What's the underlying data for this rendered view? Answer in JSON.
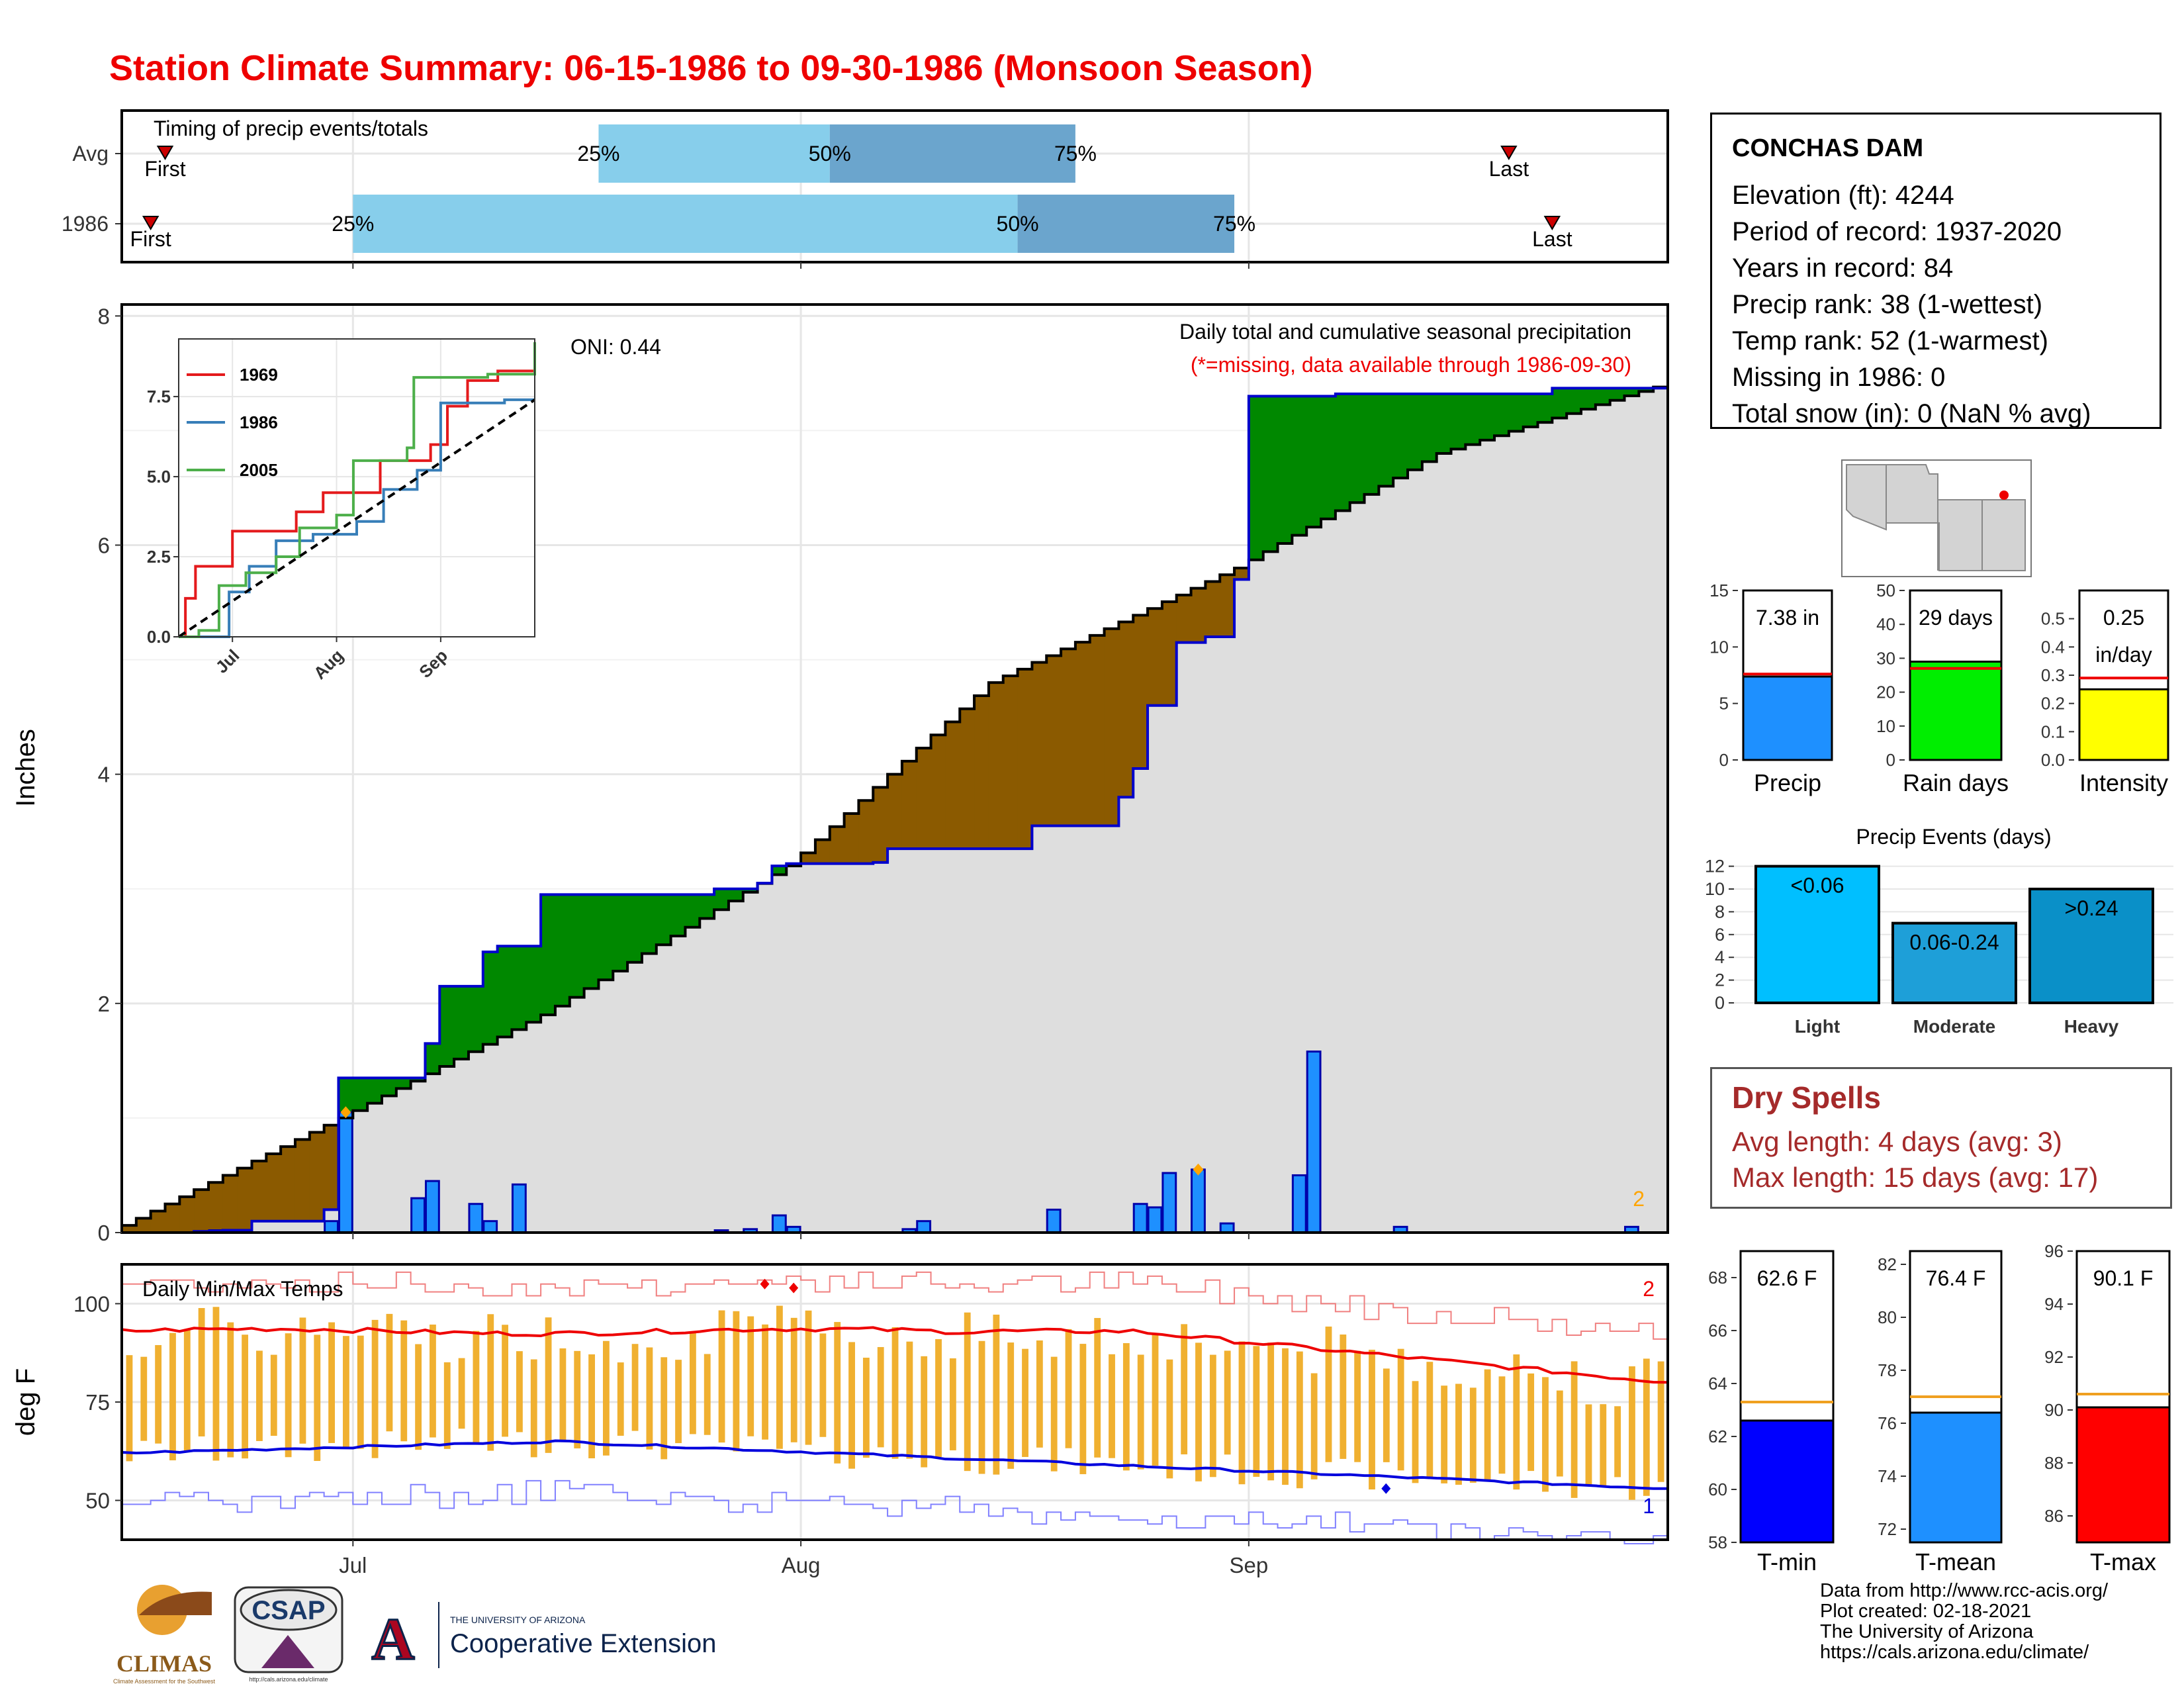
{
  "title": "Station Climate Summary: 06-15-1986 to 09-30-1986 (Monsoon Season)",
  "colors": {
    "title": "#ee0000",
    "avg_precip_line": "#000000",
    "year_precip_line": "#0000cc",
    "surplus_fill": "#008800",
    "deficit_fill": "#8b5a00",
    "background_fill": "#dedede",
    "daily_bars": "#1e90ff",
    "tmax": "#ee0000",
    "tmin": "#0000dd",
    "temp_range_bars": "#f0b030"
  },
  "timing_panel": {
    "title": "Timing of precip events/totals",
    "rows": [
      "Avg",
      "1986"
    ],
    "quartile_labels": [
      "25%",
      "50%",
      "75%"
    ],
    "first_label": "First",
    "last_label": "Last",
    "avg": {
      "first": "1986-06-18",
      "q25": "1986-07-18",
      "q50": "1986-08-03",
      "q75": "1986-08-20",
      "last": "1986-09-19"
    },
    "year": {
      "first": "1986-06-17",
      "q25": "1986-07-01",
      "q50": "1986-08-16",
      "q75": "1986-08-31",
      "last": "1986-09-22"
    }
  },
  "precip_panel": {
    "ylabel": "Inches",
    "yticks": [
      0,
      2,
      4,
      6,
      8
    ],
    "ylim": [
      0,
      8.1
    ],
    "xticks": [
      "Jul",
      "Aug",
      "Sep"
    ],
    "header_line1": "Daily total and cumulative seasonal precipitation",
    "header_line2": "(*=missing, data available through 1986-09-30)",
    "oni": "ONI: 0.44",
    "corner_count": "2"
  },
  "inset": {
    "yticks": [
      "0.0",
      "2.5",
      "5.0",
      "7.5"
    ],
    "xticks": [
      "Jul",
      "Aug",
      "Sep"
    ],
    "legend": [
      {
        "label": "1969",
        "color": "#e41a1c"
      },
      {
        "label": "1986",
        "color": "#377eb8"
      },
      {
        "label": "2005",
        "color": "#4daf4a"
      }
    ]
  },
  "temp_panel": {
    "title": "Daily Min/Max Temps",
    "ylabel": "deg F",
    "yticks": [
      50,
      75,
      100
    ],
    "ylim": [
      40,
      110
    ],
    "xticks": [
      "Jul",
      "Aug",
      "Sep"
    ],
    "count_max": "2",
    "count_min": "1"
  },
  "station_info": {
    "name": "CONCHAS DAM",
    "lines": [
      "Elevation (ft): 4244",
      "Period of record: 1937-2020",
      "Years in record: 84",
      "Precip rank: 38 (1-wettest)",
      "Temp rank: 52 (1-warmest)",
      "Missing in 1986: 0",
      "Total snow (in): 0 (NaN % avg)"
    ]
  },
  "summary_bars": [
    {
      "label": "Precip",
      "value_text": "7.38 in",
      "value": 7.38,
      "avg": 7.6,
      "ylim": [
        0,
        15
      ],
      "yticks": [
        0,
        5,
        10,
        15
      ],
      "color": "#1e90ff"
    },
    {
      "label": "Rain days",
      "value_text": "29 days",
      "value": 29,
      "avg": 27,
      "ylim": [
        0,
        50
      ],
      "yticks": [
        0,
        10,
        20,
        30,
        40,
        50
      ],
      "color": "#00ee00"
    },
    {
      "label": "Intensity",
      "value_text": "0.25",
      "value_text2": "in/day",
      "value": 0.25,
      "avg": 0.29,
      "ylim": [
        0,
        0.6
      ],
      "yticks": [
        "0.0",
        "0.1",
        "0.2",
        "0.3",
        "0.4",
        "0.5"
      ],
      "color": "#ffff00"
    }
  ],
  "precip_events": {
    "title": "Precip Events (days)",
    "yticks": [
      0,
      2,
      4,
      6,
      8,
      10,
      12
    ],
    "categories": [
      "Light",
      "Moderate",
      "Heavy"
    ],
    "bar_labels": [
      "<0.06",
      "0.06-0.24",
      ">0.24"
    ],
    "values": [
      12,
      7,
      10
    ],
    "colors": [
      "#00bfff",
      "#1e9fd8",
      "#0a90c8"
    ]
  },
  "dry_spells": {
    "title": "Dry Spells",
    "avg_line": "Avg length: 4 days (avg: 3)",
    "max_line": "Max length: 15 days (avg: 17)"
  },
  "temp_bars": [
    {
      "label": "T-min",
      "value_text": "62.6 F",
      "value": 62.6,
      "avg": 63.3,
      "ylim": [
        58,
        69
      ],
      "yticks": [
        58,
        60,
        62,
        64,
        66,
        68
      ],
      "color": "#0000ff"
    },
    {
      "label": "T-mean",
      "value_text": "76.4 F",
      "value": 76.4,
      "avg": 77.0,
      "ylim": [
        71.5,
        82.5
      ],
      "yticks": [
        72,
        74,
        76,
        78,
        80,
        82
      ],
      "color": "#1e90ff"
    },
    {
      "label": "T-max",
      "value_text": "90.1 F",
      "value": 90.1,
      "avg": 90.6,
      "ylim": [
        85,
        96
      ],
      "yticks": [
        86,
        88,
        90,
        92,
        94,
        96
      ],
      "color": "#ff0000"
    }
  ],
  "chart_data": [
    {
      "type": "line",
      "title": "Daily total and cumulative seasonal precipitation",
      "ylabel": "Inches",
      "x_start": "1986-06-15",
      "x_end": "1986-09-30",
      "ylim": [
        0,
        8.1
      ],
      "series": [
        {
          "name": "1986",
          "points": [
            [
              "1986-06-15",
              0.0
            ],
            [
              "1986-06-20",
              0.01
            ],
            [
              "1986-06-22",
              0.02
            ],
            [
              "1986-06-24",
              0.1
            ],
            [
              "1986-06-29",
              0.2
            ],
            [
              "1986-06-30",
              1.35
            ],
            [
              "1986-07-06",
              1.65
            ],
            [
              "1986-07-07",
              2.15
            ],
            [
              "1986-07-10",
              2.45
            ],
            [
              "1986-07-11",
              2.5
            ],
            [
              "1986-07-14",
              2.95
            ],
            [
              "1986-07-26",
              3.0
            ],
            [
              "1986-07-29",
              3.05
            ],
            [
              "1986-07-30",
              3.2
            ],
            [
              "1986-07-31",
              3.22
            ],
            [
              "1986-08-06",
              3.23
            ],
            [
              "1986-08-07",
              3.35
            ],
            [
              "1986-08-17",
              3.55
            ],
            [
              "1986-08-23",
              3.8
            ],
            [
              "1986-08-24",
              4.05
            ],
            [
              "1986-08-25",
              4.6
            ],
            [
              "1986-08-27",
              5.15
            ],
            [
              "1986-08-29",
              5.2
            ],
            [
              "1986-08-31",
              5.7
            ],
            [
              "1986-09-01",
              7.3
            ],
            [
              "1986-09-07",
              7.32
            ],
            [
              "1986-09-22",
              7.37
            ],
            [
              "1986-09-30",
              7.38
            ]
          ]
        }
      ],
      "average_cumulative": [
        [
          "1986-06-15",
          0.0
        ],
        [
          "1986-07-01",
          1.0
        ],
        [
          "1986-07-15",
          1.9
        ],
        [
          "1986-08-01",
          3.2
        ],
        [
          "1986-08-15",
          4.8
        ],
        [
          "1986-09-01",
          5.8
        ],
        [
          "1986-09-15",
          6.8
        ],
        [
          "1986-09-30",
          7.38
        ]
      ],
      "daily_bars": [
        [
          "1986-06-21",
          0.02
        ],
        [
          "1986-06-29",
          0.1
        ],
        [
          "1986-06-30",
          1.05
        ],
        [
          "1986-07-05",
          0.3
        ],
        [
          "1986-07-06",
          0.45
        ],
        [
          "1986-07-09",
          0.25
        ],
        [
          "1986-07-10",
          0.1
        ],
        [
          "1986-07-12",
          0.42
        ],
        [
          "1986-07-26",
          0.02
        ],
        [
          "1986-07-28",
          0.03
        ],
        [
          "1986-07-30",
          0.15
        ],
        [
          "1986-07-31",
          0.05
        ],
        [
          "1986-08-08",
          0.03
        ],
        [
          "1986-08-09",
          0.1
        ],
        [
          "1986-08-18",
          0.2
        ],
        [
          "1986-08-24",
          0.25
        ],
        [
          "1986-08-25",
          0.22
        ],
        [
          "1986-08-26",
          0.52
        ],
        [
          "1986-08-28",
          0.55
        ],
        [
          "1986-08-30",
          0.08
        ],
        [
          "1986-09-04",
          0.5
        ],
        [
          "1986-09-05",
          1.58
        ],
        [
          "1986-09-11",
          0.05
        ],
        [
          "1986-09-27",
          0.05
        ]
      ]
    },
    {
      "type": "line",
      "title": "",
      "x": [
        "Jul",
        "Aug",
        "Sep"
      ],
      "ylim": [
        0,
        9.3
      ],
      "series": [
        {
          "name": "1969",
          "points": [
            [
              0,
              0
            ],
            [
              2,
              1.2
            ],
            [
              3,
              1.2
            ],
            [
              5,
              2.2
            ],
            [
              9,
              2.2
            ],
            [
              16,
              3.3
            ],
            [
              27,
              3.3
            ],
            [
              35,
              3.9
            ],
            [
              43,
              4.5
            ],
            [
              60,
              5.5
            ],
            [
              75,
              6.0
            ],
            [
              80,
              7.2
            ],
            [
              86,
              8.0
            ],
            [
              95,
              8.3
            ],
            [
              106,
              8.5
            ]
          ]
        },
        {
          "name": "1986",
          "points": [
            [
              0,
              0
            ],
            [
              15,
              1.4
            ],
            [
              21,
              2.2
            ],
            [
              29,
              3.0
            ],
            [
              40,
              3.2
            ],
            [
              53,
              3.6
            ],
            [
              61,
              4.6
            ],
            [
              71,
              5.2
            ],
            [
              78,
              7.3
            ],
            [
              97,
              7.4
            ],
            [
              106,
              7.4
            ]
          ]
        },
        {
          "name": "2005",
          "points": [
            [
              0,
              0
            ],
            [
              6,
              0.2
            ],
            [
              12,
              1.6
            ],
            [
              20,
              2.0
            ],
            [
              29,
              2.5
            ],
            [
              36,
              3.4
            ],
            [
              47,
              3.8
            ],
            [
              52,
              5.5
            ],
            [
              68,
              5.9
            ],
            [
              70,
              8.1
            ],
            [
              92,
              8.2
            ],
            [
              106,
              9.2
            ]
          ]
        },
        {
          "name": "",
          "points": [
            [
              0,
              0
            ],
            [
              106,
              7.4
            ]
          ]
        }
      ]
    },
    {
      "type": "line",
      "title": "Daily Min/Max Temps",
      "ylabel": "deg F",
      "ylim": [
        40,
        110
      ],
      "series": [
        {
          "name": "",
          "values_start_end": [
            93,
            80
          ]
        },
        {
          "name": "",
          "values_start_end": [
            62,
            53
          ]
        }
      ]
    },
    {
      "type": "bar",
      "categories": [
        "Precip"
      ],
      "values": [
        7.38
      ],
      "ylim": [
        0,
        15
      ]
    },
    {
      "type": "bar",
      "categories": [
        "Rain days"
      ],
      "values": [
        29
      ],
      "ylim": [
        0,
        50
      ]
    },
    {
      "type": "bar",
      "categories": [
        "Intensity"
      ],
      "values": [
        0.25
      ],
      "ylim": [
        0,
        0.6
      ]
    },
    {
      "type": "bar",
      "title": "Precip Events (days)",
      "categories": [
        "Light",
        "Moderate",
        "Heavy"
      ],
      "values": [
        12,
        7,
        10
      ],
      "ylim": [
        0,
        12.5
      ]
    },
    {
      "type": "bar",
      "categories": [
        "T-min"
      ],
      "values": [
        62.6
      ],
      "ylim": [
        58,
        69
      ]
    },
    {
      "type": "bar",
      "categories": [
        "T-mean"
      ],
      "values": [
        76.4
      ],
      "ylim": [
        71.5,
        82.5
      ]
    },
    {
      "type": "bar",
      "categories": [
        "T-max"
      ],
      "values": [
        90.1
      ],
      "ylim": [
        85,
        96
      ]
    }
  ],
  "footer": {
    "lines": [
      "Data from http://www.rcc-acis.org/",
      "Plot created: 02-18-2021",
      "The University of Arizona",
      "https://cals.arizona.edu/climate/"
    ]
  },
  "logos": {
    "climas": "CLIMAS",
    "climas_sub": "Climate Assessment for the Southwest",
    "csap": "CSAP",
    "csap_url": "http://cals.arizona.edu/climate",
    "ua_small": "THE UNIVERSITY OF ARIZONA",
    "ua_big": "Cooperative Extension",
    "ua_letter": "A"
  }
}
